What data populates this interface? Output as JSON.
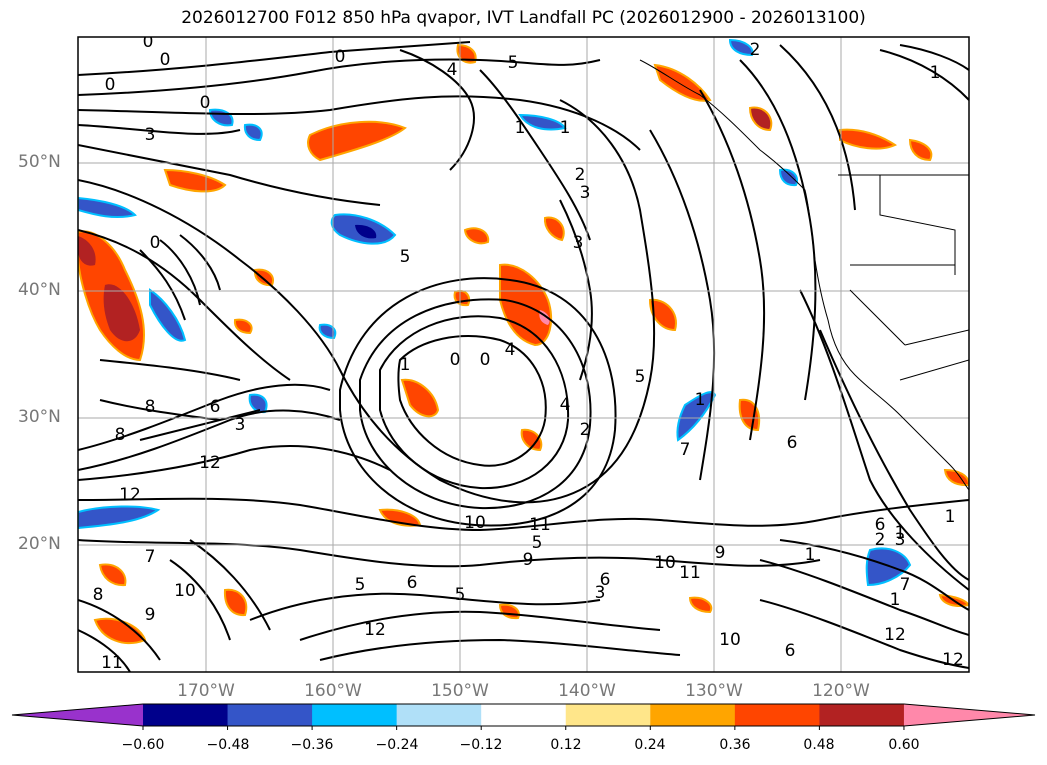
{
  "title": "2026012700 F012 850 hPa qvapor, IVT Landfall PC (2026012900 - 2026013100)",
  "lat_labels": [
    "50°N",
    "40°N",
    "30°N",
    "20°N"
  ],
  "lon_labels": [
    "170°W",
    "160°W",
    "150°W",
    "140°W",
    "130°W",
    "120°W"
  ],
  "colorbar": {
    "tick_labels": [
      "−0.60",
      "−0.48",
      "−0.36",
      "−0.24",
      "−0.12",
      "0.12",
      "0.24",
      "0.36",
      "0.48",
      "0.60"
    ],
    "colors": [
      "#9932cc",
      "#00008b",
      "#3455c8",
      "#00bfff",
      "#b0e0f8",
      "#ffffff",
      "#ffe68a",
      "#ffa500",
      "#ff4500",
      "#b22222",
      "#ff88aa"
    ]
  },
  "contour_labels": [
    "0",
    "0",
    "0",
    "0",
    "0",
    "3",
    "4",
    "5",
    "1",
    "1",
    "2",
    "3",
    "3",
    "5",
    "2",
    "1",
    "0",
    "6",
    "3",
    "8",
    "8",
    "12",
    "12",
    "7",
    "10",
    "8",
    "9",
    "1",
    "0",
    "0",
    "4",
    "5",
    "4",
    "2",
    "1",
    "7",
    "6",
    "10",
    "11",
    "6",
    "12",
    "3",
    "1",
    "6",
    "7",
    "1",
    "3",
    "5",
    "10",
    "11",
    "9",
    "1",
    "2",
    "1",
    "12",
    "10",
    "6",
    "9",
    "5",
    "5",
    "6",
    "12",
    "11"
  ]
}
